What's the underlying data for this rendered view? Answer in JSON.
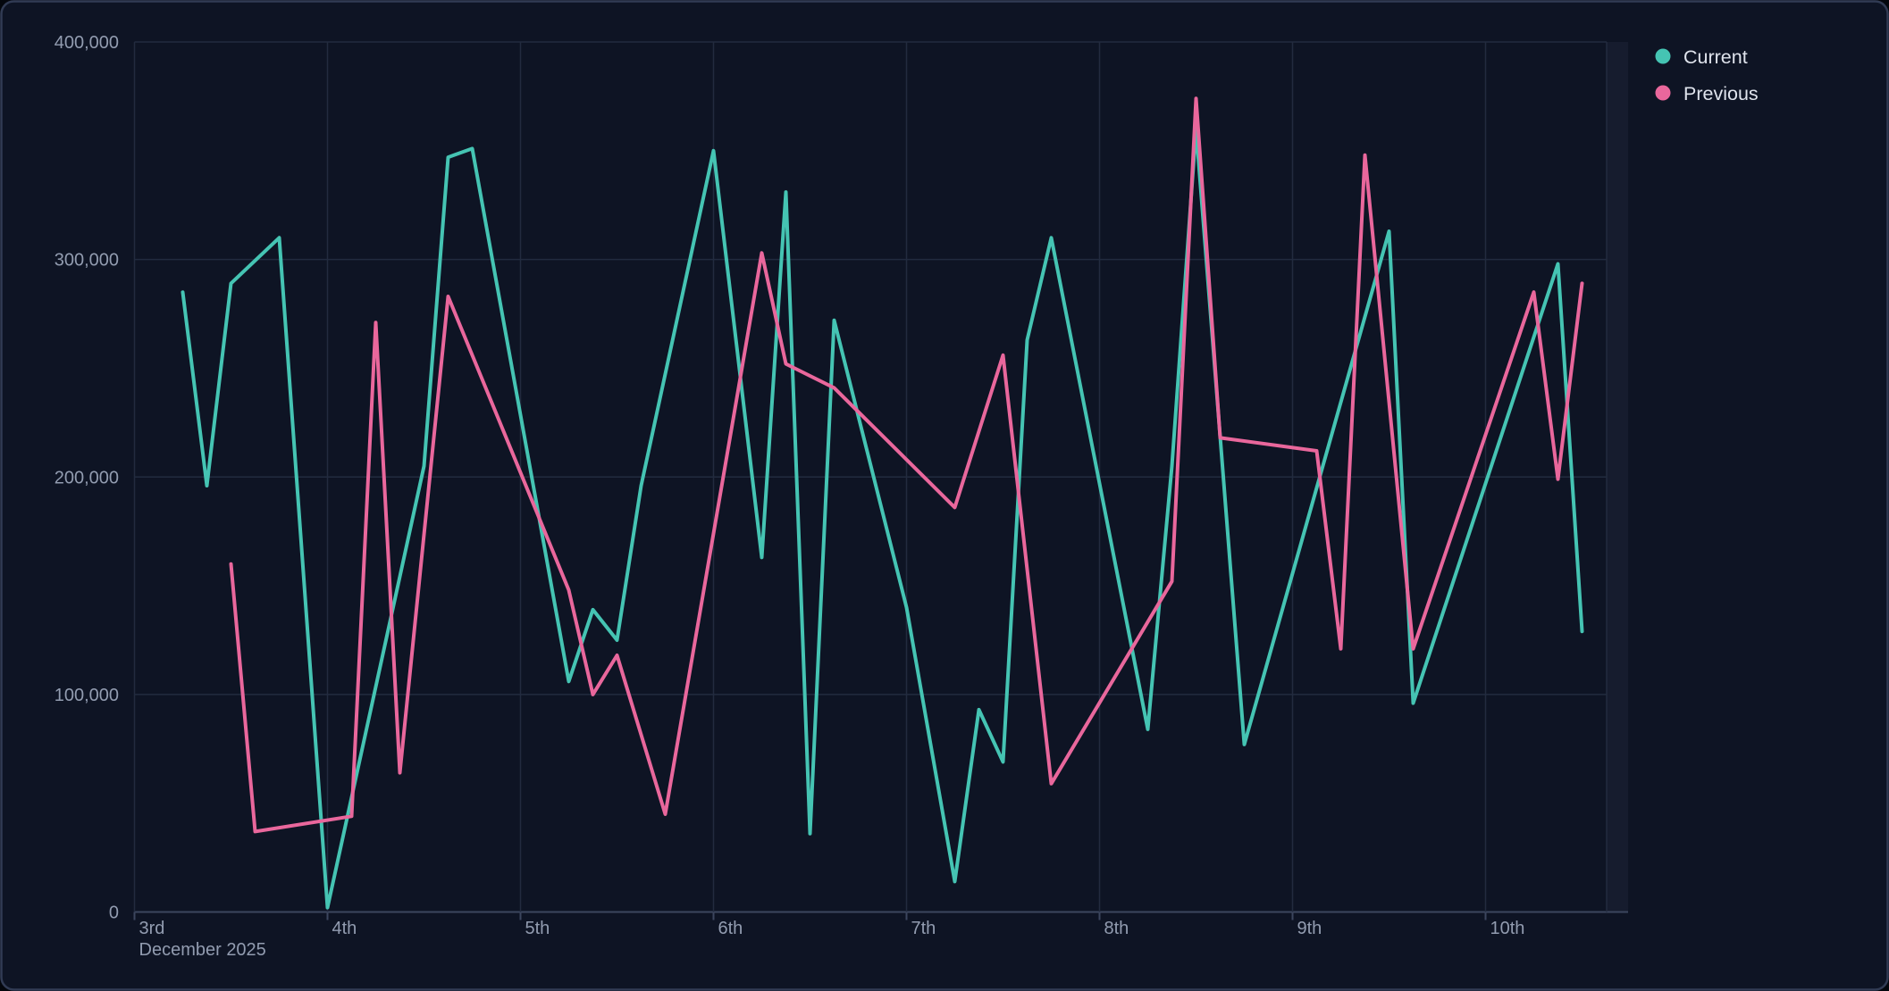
{
  "chart_title": "",
  "legend": {
    "position": "top-right",
    "items": [
      {
        "label": "Current",
        "color": "#45c4b3"
      },
      {
        "label": "Previous",
        "color": "#e9679c"
      }
    ]
  },
  "colors": {
    "background": "#0e1424",
    "card_border": "#313b54",
    "gridline": "#222b3f",
    "axis_line": "#3c465e",
    "axis_text": "#929cb0",
    "legend_text": "#dfe3ec",
    "series_current": "#45c4b3",
    "series_previous": "#e9679c",
    "right_band_fill": "rgba(160,178,214,0.06)"
  },
  "chart_data": {
    "type": "line",
    "title": "",
    "xlabel": "",
    "ylabel": "",
    "grid": true,
    "legend_position": "top-right",
    "x_axis": {
      "unit": "day of month",
      "tick_labels": [
        "3rd",
        "4th",
        "5th",
        "6th",
        "7th",
        "8th",
        "9th",
        "10th"
      ],
      "tick_values": [
        3,
        4,
        5,
        6,
        7,
        8,
        9,
        10
      ],
      "sub_label": "December 2025",
      "domain": [
        3,
        10.63
      ]
    },
    "y_axis": {
      "tick_labels": [
        "0",
        "100,000",
        "200,000",
        "300,000",
        "400,000"
      ],
      "tick_values": [
        0,
        100000,
        200000,
        300000,
        400000
      ],
      "range": [
        0,
        400000
      ]
    },
    "series": [
      {
        "name": "Current",
        "color": "#45c4b3",
        "points": [
          [
            3.25,
            285000
          ],
          [
            3.375,
            196000
          ],
          [
            3.5,
            289000
          ],
          [
            3.75,
            310000
          ],
          [
            4,
            2000
          ],
          [
            4.5,
            205000
          ],
          [
            4.625,
            347000
          ],
          [
            4.75,
            351000
          ],
          [
            5.25,
            106000
          ],
          [
            5.375,
            139000
          ],
          [
            5.5,
            125000
          ],
          [
            5.625,
            196000
          ],
          [
            6,
            350000
          ],
          [
            6.25,
            163000
          ],
          [
            6.375,
            331000
          ],
          [
            6.5,
            36000
          ],
          [
            6.625,
            272000
          ],
          [
            7,
            140000
          ],
          [
            7.25,
            14000
          ],
          [
            7.375,
            93000
          ],
          [
            7.5,
            69000
          ],
          [
            7.625,
            263000
          ],
          [
            7.75,
            310000
          ],
          [
            8.25,
            84000
          ],
          [
            8.375,
            205000
          ],
          [
            8.5,
            360000
          ],
          [
            8.75,
            77000
          ],
          [
            9.5,
            313000
          ],
          [
            9.625,
            96000
          ],
          [
            10.375,
            298000
          ],
          [
            10.5,
            129000
          ]
        ]
      },
      {
        "name": "Previous",
        "color": "#e9679c",
        "points": [
          [
            3.5,
            160000
          ],
          [
            3.625,
            37000
          ],
          [
            4.125,
            44000
          ],
          [
            4.25,
            271000
          ],
          [
            4.375,
            64000
          ],
          [
            4.625,
            283000
          ],
          [
            5.25,
            148000
          ],
          [
            5.375,
            100000
          ],
          [
            5.5,
            118000
          ],
          [
            5.75,
            45000
          ],
          [
            6.25,
            303000
          ],
          [
            6.375,
            252000
          ],
          [
            6.625,
            241000
          ],
          [
            7.25,
            186000
          ],
          [
            7.5,
            256000
          ],
          [
            7.75,
            59000
          ],
          [
            8.375,
            152000
          ],
          [
            8.5,
            374000
          ],
          [
            8.625,
            218000
          ],
          [
            9.125,
            212000
          ],
          [
            9.25,
            121000
          ],
          [
            9.375,
            348000
          ],
          [
            9.625,
            121000
          ],
          [
            10.25,
            285000
          ],
          [
            10.375,
            199000
          ],
          [
            10.5,
            289000
          ]
        ]
      }
    ]
  }
}
